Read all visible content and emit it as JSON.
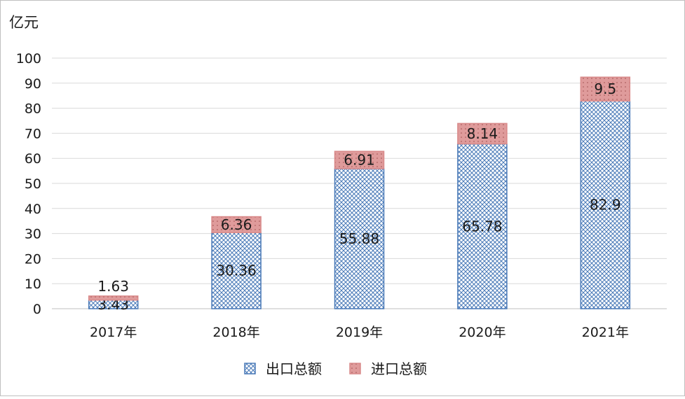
{
  "chart_data": {
    "type": "bar",
    "stacked": true,
    "unit_label": "亿元",
    "categories": [
      "2017年",
      "2018年",
      "2019年",
      "2020年",
      "2021年"
    ],
    "series": [
      {
        "name": "出口总额",
        "values": [
          3.43,
          30.36,
          55.88,
          65.78,
          82.9
        ],
        "labels": [
          "3.43",
          "30.36",
          "55.88",
          "65.78",
          "82.9"
        ],
        "color": "#4a7ab8",
        "fill": "#ffffff",
        "pattern": "crosshatch"
      },
      {
        "name": "进口总额",
        "values": [
          1.63,
          6.36,
          6.91,
          8.14,
          9.5
        ],
        "labels": [
          "1.63",
          "6.36",
          "6.91",
          "8.14",
          "9.5"
        ],
        "color": "#d98a8a",
        "pattern": "dotted"
      }
    ],
    "ylim": [
      0,
      100
    ],
    "yticks": [
      "0",
      "10",
      "20",
      "30",
      "40",
      "50",
      "60",
      "70",
      "80",
      "90",
      "100"
    ],
    "grid": true,
    "legend_position": "bottom"
  }
}
